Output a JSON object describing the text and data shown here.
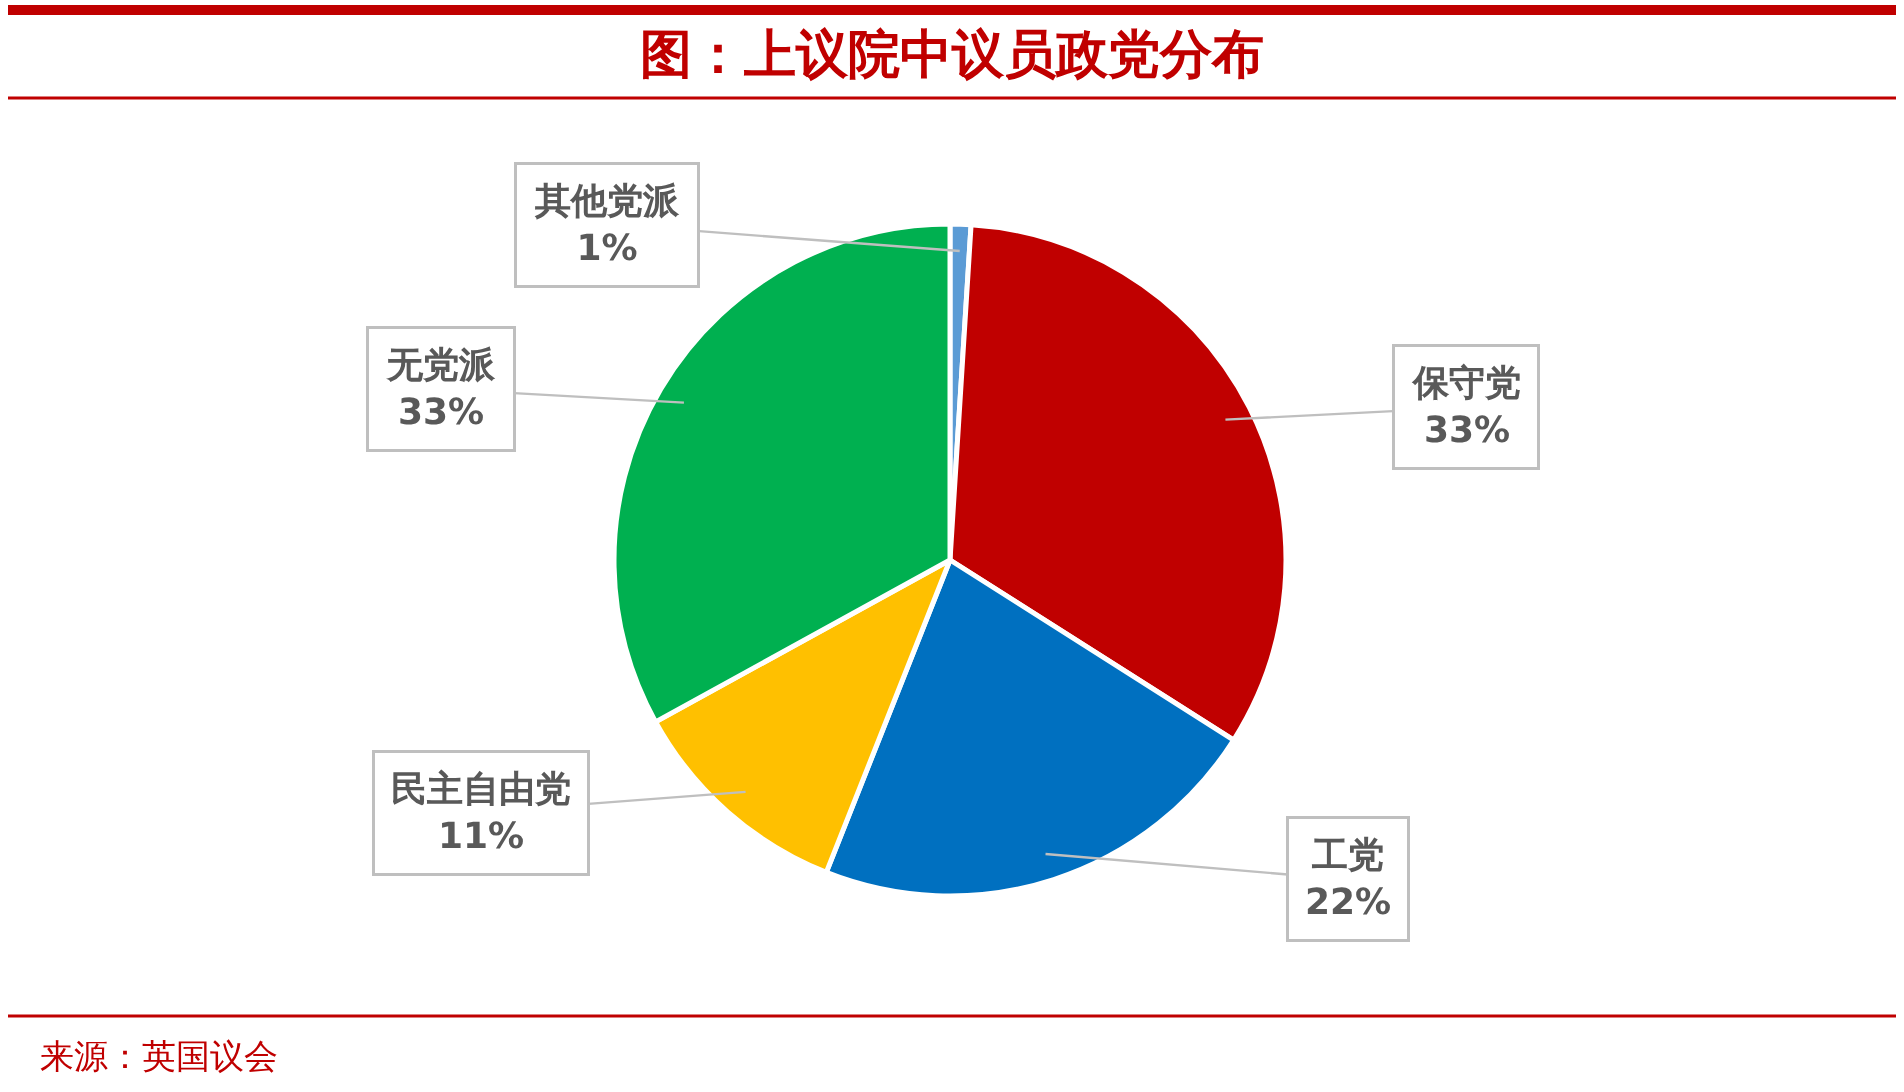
{
  "chart_data": {
    "type": "pie",
    "title": "图：上议院中议员政党分布",
    "categories": [
      "其他党派",
      "保守党",
      "工党",
      "民主自由党",
      "无党派"
    ],
    "values": [
      1,
      33,
      22,
      11,
      33
    ],
    "value_labels": [
      "1%",
      "33%",
      "22%",
      "11%",
      "33%"
    ],
    "colors": [
      "#5b9bd5",
      "#c00000",
      "#0070c0",
      "#ffc000",
      "#00b050"
    ],
    "annotations": [
      "来源：英国议会"
    ]
  }
}
